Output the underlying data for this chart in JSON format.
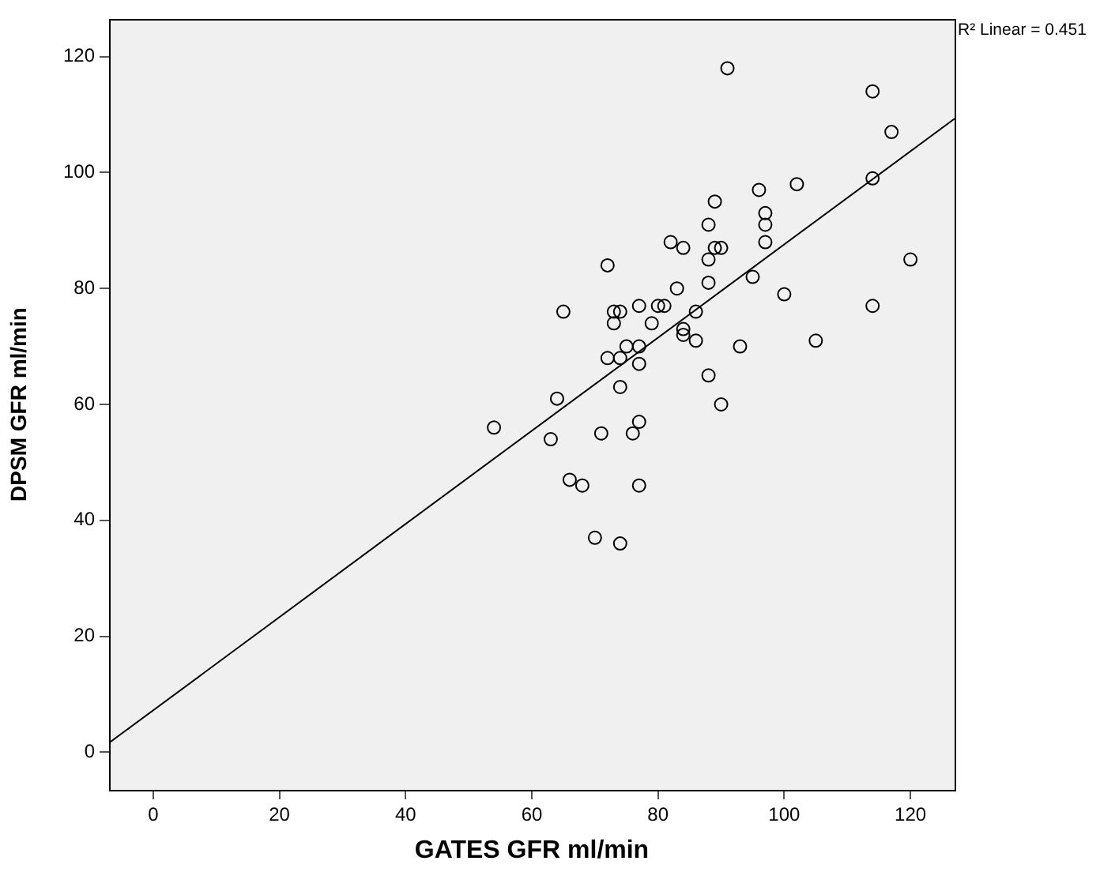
{
  "chart_data": {
    "type": "scatter",
    "xlabel": "GATES GFR ml/min",
    "ylabel": "DPSM GFR ml/min",
    "xlim": [
      -7,
      127
    ],
    "ylim": [
      -6.5,
      126.5
    ],
    "xticks": [
      0,
      20,
      40,
      60,
      80,
      100,
      120
    ],
    "yticks": [
      0,
      20,
      40,
      60,
      80,
      100,
      120
    ],
    "legend": false,
    "marker": "circle",
    "annotations": [
      "R² Linear = 0.451"
    ],
    "series": [
      {
        "color": "#000000",
        "x": [
          91,
          114,
          117,
          114,
          120,
          102,
          96,
          89,
          97,
          97,
          88,
          97,
          82,
          84,
          89,
          90,
          88,
          72,
          95,
          88,
          83,
          100,
          114,
          65,
          73,
          74,
          77,
          80,
          81,
          86,
          73,
          79,
          84,
          84,
          86,
          93,
          105,
          75,
          77,
          72,
          74,
          77,
          64,
          74,
          88,
          90,
          54,
          63,
          71,
          76,
          77,
          66,
          68,
          77,
          70,
          74
        ],
        "values": [
          118,
          114,
          107,
          99,
          85,
          98,
          97,
          95,
          93,
          91,
          91,
          88,
          88,
          87,
          87,
          87,
          85,
          84,
          82,
          81,
          80,
          79,
          77,
          76,
          76,
          76,
          77,
          77,
          77,
          76,
          74,
          74,
          73,
          72,
          71,
          70,
          71,
          70,
          70,
          68,
          68,
          67,
          61,
          63,
          65,
          60,
          56,
          54,
          55,
          55,
          57,
          47,
          46,
          46,
          37,
          36
        ]
      },
      {
        "type": "line",
        "color": "#000000",
        "marker": "none",
        "x": [
          -7,
          127
        ],
        "values": [
          1.6,
          109.3
        ]
      }
    ]
  }
}
